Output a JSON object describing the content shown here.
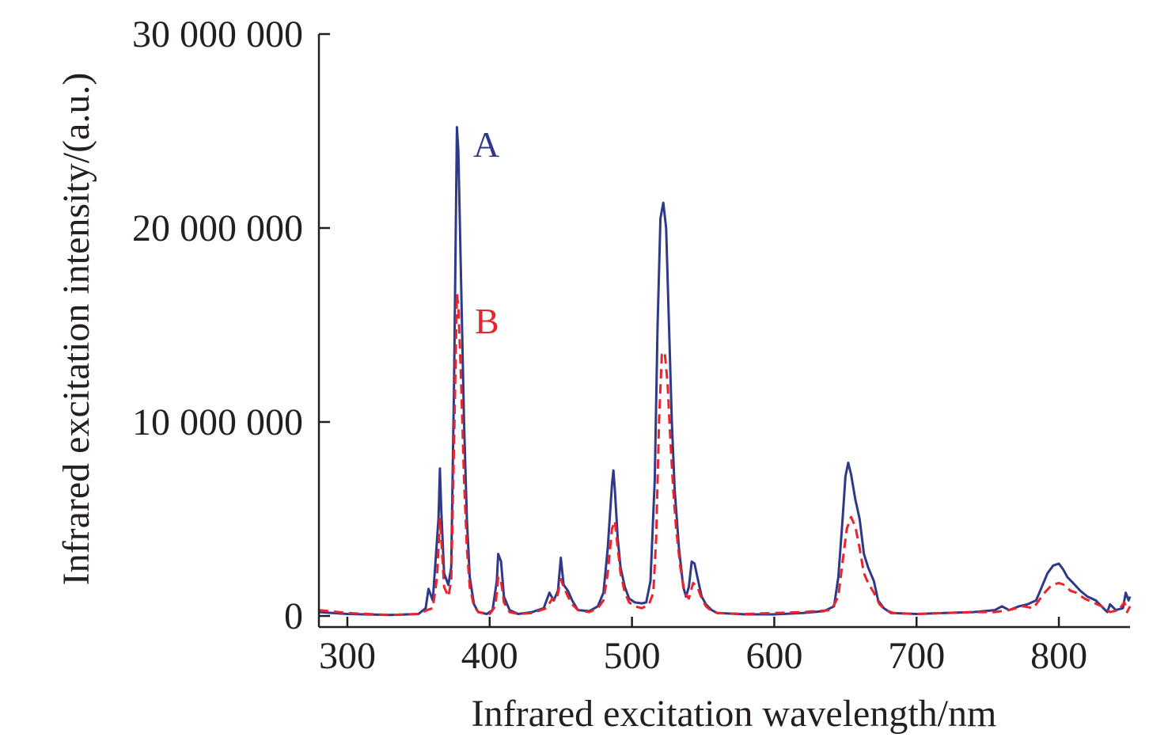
{
  "chart_data": {
    "type": "line",
    "title": "",
    "xlabel": "Infrared excitation wavelength/nm",
    "ylabel": "Infrared excitation intensity/(a.u.)",
    "xlim": [
      280,
      850
    ],
    "ylim": [
      0,
      30000000
    ],
    "x_ticks": [
      300,
      400,
      500,
      600,
      700,
      800
    ],
    "x_tick_labels": [
      "300",
      "400",
      "500",
      "600",
      "700",
      "800"
    ],
    "y_ticks": [
      0,
      10000000,
      20000000,
      30000000
    ],
    "y_tick_labels": [
      "0",
      "10 000 000",
      "20 000 000",
      "30 000 000"
    ],
    "grid": false,
    "legend": "inline labels",
    "series": [
      {
        "name": "A",
        "color": "#2e3a87",
        "dash": "solid",
        "points": [
          [
            280,
            200000
          ],
          [
            300,
            100000
          ],
          [
            330,
            50000
          ],
          [
            350,
            100000
          ],
          [
            355,
            400000
          ],
          [
            357,
            1400000
          ],
          [
            360,
            800000
          ],
          [
            364,
            5000000
          ],
          [
            365,
            7600000
          ],
          [
            366,
            5500000
          ],
          [
            368,
            2200000
          ],
          [
            371,
            1600000
          ],
          [
            373,
            2500000
          ],
          [
            375,
            12000000
          ],
          [
            377,
            25200000
          ],
          [
            378,
            24000000
          ],
          [
            380,
            17000000
          ],
          [
            382,
            10000000
          ],
          [
            384,
            5000000
          ],
          [
            386,
            2000000
          ],
          [
            389,
            600000
          ],
          [
            392,
            200000
          ],
          [
            398,
            100000
          ],
          [
            402,
            300000
          ],
          [
            405,
            1800000
          ],
          [
            406,
            3200000
          ],
          [
            408,
            2800000
          ],
          [
            410,
            1000000
          ],
          [
            414,
            300000
          ],
          [
            420,
            100000
          ],
          [
            430,
            200000
          ],
          [
            438,
            400000
          ],
          [
            442,
            1200000
          ],
          [
            445,
            800000
          ],
          [
            448,
            1300000
          ],
          [
            450,
            3000000
          ],
          [
            452,
            1600000
          ],
          [
            455,
            1300000
          ],
          [
            458,
            800000
          ],
          [
            462,
            300000
          ],
          [
            470,
            250000
          ],
          [
            476,
            500000
          ],
          [
            480,
            1200000
          ],
          [
            483,
            3500000
          ],
          [
            486,
            6800000
          ],
          [
            487,
            7500000
          ],
          [
            488,
            6500000
          ],
          [
            490,
            4000000
          ],
          [
            492,
            2500000
          ],
          [
            495,
            1500000
          ],
          [
            498,
            900000
          ],
          [
            502,
            700000
          ],
          [
            507,
            650000
          ],
          [
            510,
            700000
          ],
          [
            513,
            1800000
          ],
          [
            516,
            7000000
          ],
          [
            518,
            15000000
          ],
          [
            520,
            20500000
          ],
          [
            522,
            21300000
          ],
          [
            524,
            20000000
          ],
          [
            526,
            15000000
          ],
          [
            528,
            10000000
          ],
          [
            530,
            6500000
          ],
          [
            533,
            3500000
          ],
          [
            536,
            1500000
          ],
          [
            538,
            1000000
          ],
          [
            540,
            1500000
          ],
          [
            542,
            2800000
          ],
          [
            544,
            2700000
          ],
          [
            546,
            2000000
          ],
          [
            549,
            1000000
          ],
          [
            552,
            600000
          ],
          [
            556,
            300000
          ],
          [
            560,
            150000
          ],
          [
            580,
            80000
          ],
          [
            600,
            80000
          ],
          [
            620,
            150000
          ],
          [
            635,
            250000
          ],
          [
            642,
            500000
          ],
          [
            645,
            2000000
          ],
          [
            648,
            5000000
          ],
          [
            650,
            7200000
          ],
          [
            652,
            7900000
          ],
          [
            654,
            7300000
          ],
          [
            657,
            6000000
          ],
          [
            660,
            5000000
          ],
          [
            663,
            3200000
          ],
          [
            666,
            2500000
          ],
          [
            670,
            1800000
          ],
          [
            673,
            800000
          ],
          [
            677,
            400000
          ],
          [
            682,
            150000
          ],
          [
            700,
            100000
          ],
          [
            720,
            150000
          ],
          [
            740,
            200000
          ],
          [
            755,
            300000
          ],
          [
            760,
            500000
          ],
          [
            765,
            300000
          ],
          [
            772,
            500000
          ],
          [
            778,
            600000
          ],
          [
            784,
            800000
          ],
          [
            788,
            1500000
          ],
          [
            792,
            2200000
          ],
          [
            796,
            2600000
          ],
          [
            800,
            2700000
          ],
          [
            803,
            2400000
          ],
          [
            806,
            2000000
          ],
          [
            810,
            1700000
          ],
          [
            815,
            1300000
          ],
          [
            820,
            1000000
          ],
          [
            826,
            800000
          ],
          [
            830,
            500000
          ],
          [
            834,
            200000
          ],
          [
            836,
            600000
          ],
          [
            840,
            300000
          ],
          [
            845,
            400000
          ],
          [
            847,
            1200000
          ],
          [
            849,
            800000
          ],
          [
            850,
            1000000
          ]
        ]
      },
      {
        "name": "B",
        "color": "#e8242c",
        "dash": "dashed",
        "points": [
          [
            280,
            300000
          ],
          [
            300,
            150000
          ],
          [
            330,
            50000
          ],
          [
            350,
            100000
          ],
          [
            356,
            300000
          ],
          [
            360,
            400000
          ],
          [
            363,
            2000000
          ],
          [
            365,
            5000000
          ],
          [
            366,
            4000000
          ],
          [
            368,
            1500000
          ],
          [
            371,
            1000000
          ],
          [
            373,
            1800000
          ],
          [
            375,
            9000000
          ],
          [
            377,
            16600000
          ],
          [
            378,
            16000000
          ],
          [
            380,
            12000000
          ],
          [
            382,
            7000000
          ],
          [
            384,
            3500000
          ],
          [
            386,
            1500000
          ],
          [
            389,
            500000
          ],
          [
            392,
            200000
          ],
          [
            400,
            100000
          ],
          [
            404,
            500000
          ],
          [
            406,
            2000000
          ],
          [
            408,
            1800000
          ],
          [
            410,
            700000
          ],
          [
            414,
            200000
          ],
          [
            420,
            100000
          ],
          [
            430,
            150000
          ],
          [
            440,
            400000
          ],
          [
            444,
            900000
          ],
          [
            447,
            800000
          ],
          [
            450,
            1900000
          ],
          [
            452,
            1500000
          ],
          [
            455,
            1000000
          ],
          [
            458,
            600000
          ],
          [
            462,
            300000
          ],
          [
            470,
            200000
          ],
          [
            476,
            400000
          ],
          [
            480,
            800000
          ],
          [
            483,
            2200000
          ],
          [
            486,
            4500000
          ],
          [
            488,
            4900000
          ],
          [
            490,
            3500000
          ],
          [
            492,
            2200000
          ],
          [
            495,
            1200000
          ],
          [
            498,
            700000
          ],
          [
            502,
            500000
          ],
          [
            507,
            400000
          ],
          [
            512,
            600000
          ],
          [
            515,
            1200000
          ],
          [
            517,
            4000000
          ],
          [
            519,
            10000000
          ],
          [
            521,
            13500000
          ],
          [
            523,
            13600000
          ],
          [
            525,
            12000000
          ],
          [
            527,
            9000000
          ],
          [
            529,
            6500000
          ],
          [
            531,
            4500000
          ],
          [
            534,
            2500000
          ],
          [
            537,
            1200000
          ],
          [
            540,
            900000
          ],
          [
            543,
            1700000
          ],
          [
            546,
            1500000
          ],
          [
            549,
            900000
          ],
          [
            552,
            500000
          ],
          [
            556,
            250000
          ],
          [
            560,
            150000
          ],
          [
            580,
            100000
          ],
          [
            600,
            150000
          ],
          [
            620,
            200000
          ],
          [
            640,
            300000
          ],
          [
            645,
            1000000
          ],
          [
            648,
            2800000
          ],
          [
            651,
            4500000
          ],
          [
            654,
            5100000
          ],
          [
            657,
            4600000
          ],
          [
            660,
            3500000
          ],
          [
            663,
            2200000
          ],
          [
            666,
            1700000
          ],
          [
            670,
            1200000
          ],
          [
            674,
            600000
          ],
          [
            678,
            300000
          ],
          [
            684,
            150000
          ],
          [
            700,
            100000
          ],
          [
            720,
            150000
          ],
          [
            740,
            200000
          ],
          [
            755,
            200000
          ],
          [
            765,
            300000
          ],
          [
            775,
            500000
          ],
          [
            782,
            400000
          ],
          [
            786,
            800000
          ],
          [
            790,
            1200000
          ],
          [
            795,
            1600000
          ],
          [
            800,
            1700000
          ],
          [
            804,
            1600000
          ],
          [
            808,
            1300000
          ],
          [
            812,
            1200000
          ],
          [
            818,
            900000
          ],
          [
            824,
            700000
          ],
          [
            830,
            500000
          ],
          [
            836,
            200000
          ],
          [
            842,
            300000
          ],
          [
            846,
            700000
          ],
          [
            848,
            200000
          ],
          [
            850,
            500000
          ]
        ]
      }
    ]
  }
}
